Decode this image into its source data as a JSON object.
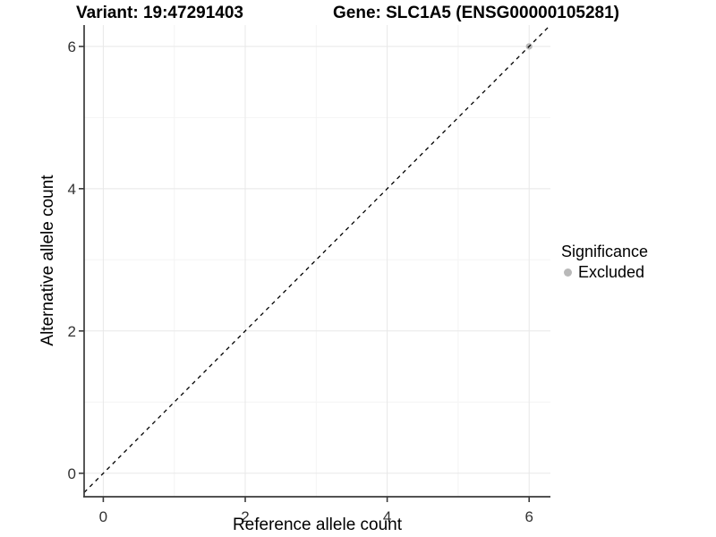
{
  "header": {
    "title_left": "Variant: 19:47291403",
    "title_right": "Gene: SLC1A5 (ENSG00000105281)"
  },
  "legend": {
    "title": "Significance",
    "items": [
      {
        "label": "Excluded",
        "color": "#b9b9b9"
      }
    ]
  },
  "chart_data": {
    "type": "scatter",
    "title": "Variant: 19:47291403 — Gene: SLC1A5 (ENSG00000105281)",
    "xlabel": "Reference allele count",
    "ylabel": "Alternative allele count",
    "xlim": [
      -0.27,
      6.3
    ],
    "ylim": [
      -0.33,
      6.3
    ],
    "xticks": [
      0,
      2,
      4,
      6
    ],
    "yticks": [
      0,
      2,
      4,
      6
    ],
    "minor_xticks": [
      1,
      3,
      5
    ],
    "minor_yticks": [
      1,
      3,
      5
    ],
    "grid": true,
    "legend_position": "right",
    "series": [
      {
        "name": "Excluded",
        "color": "#b9b9b9",
        "points": [
          {
            "x": 6,
            "y": 6
          }
        ]
      }
    ],
    "abline": {
      "slope": 1,
      "intercept": 0,
      "style": "dashed",
      "color": "#000000"
    },
    "colors": {
      "grid_major": "#e8e8e8",
      "grid_minor": "#f4f4f4",
      "axis_line": "#3a3a3a",
      "tick_label": "#333333",
      "point": "#b9b9b9"
    }
  }
}
